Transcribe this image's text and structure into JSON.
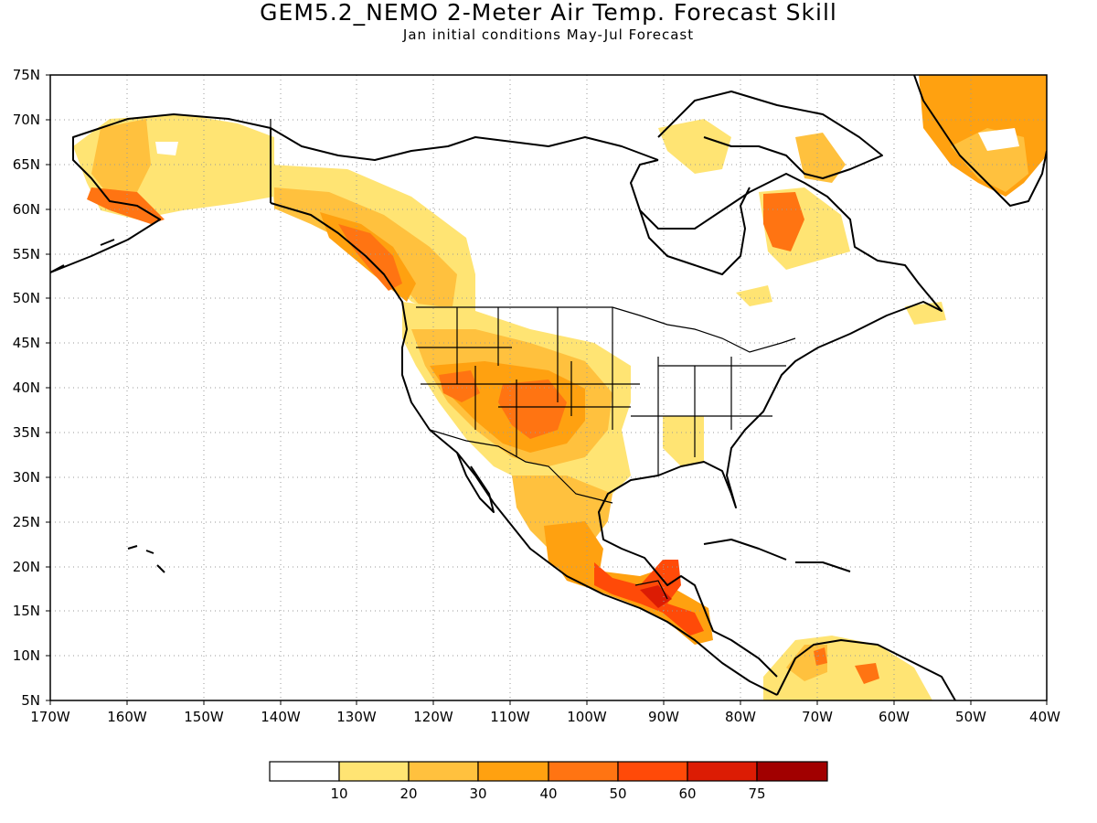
{
  "title": "GEM5.2_NEMO 2-Meter Air Temp. Forecast Skill",
  "subtitle": "Jan initial conditions   May-Jul Forecast",
  "map": {
    "lon_range": [
      -170,
      -40
    ],
    "lat_range": [
      5,
      75
    ],
    "gridlines": "dotted",
    "lat_ticks": [
      "75N",
      "70N",
      "65N",
      "60N",
      "55N",
      "50N",
      "45N",
      "40N",
      "35N",
      "30N",
      "25N",
      "20N",
      "15N",
      "10N",
      "5N"
    ],
    "lon_ticks": [
      "170W",
      "160W",
      "150W",
      "140W",
      "130W",
      "120W",
      "110W",
      "100W",
      "90W",
      "80W",
      "70W",
      "60W",
      "50W",
      "40W"
    ]
  },
  "colorbar": {
    "colors": [
      "#ffffff",
      "#ffe473",
      "#ffc13e",
      "#ffa110",
      "#ff7412",
      "#ff4a08",
      "#dc1c04",
      "#a10000"
    ],
    "labels": [
      "10",
      "20",
      "30",
      "40",
      "50",
      "60",
      "75"
    ]
  }
}
